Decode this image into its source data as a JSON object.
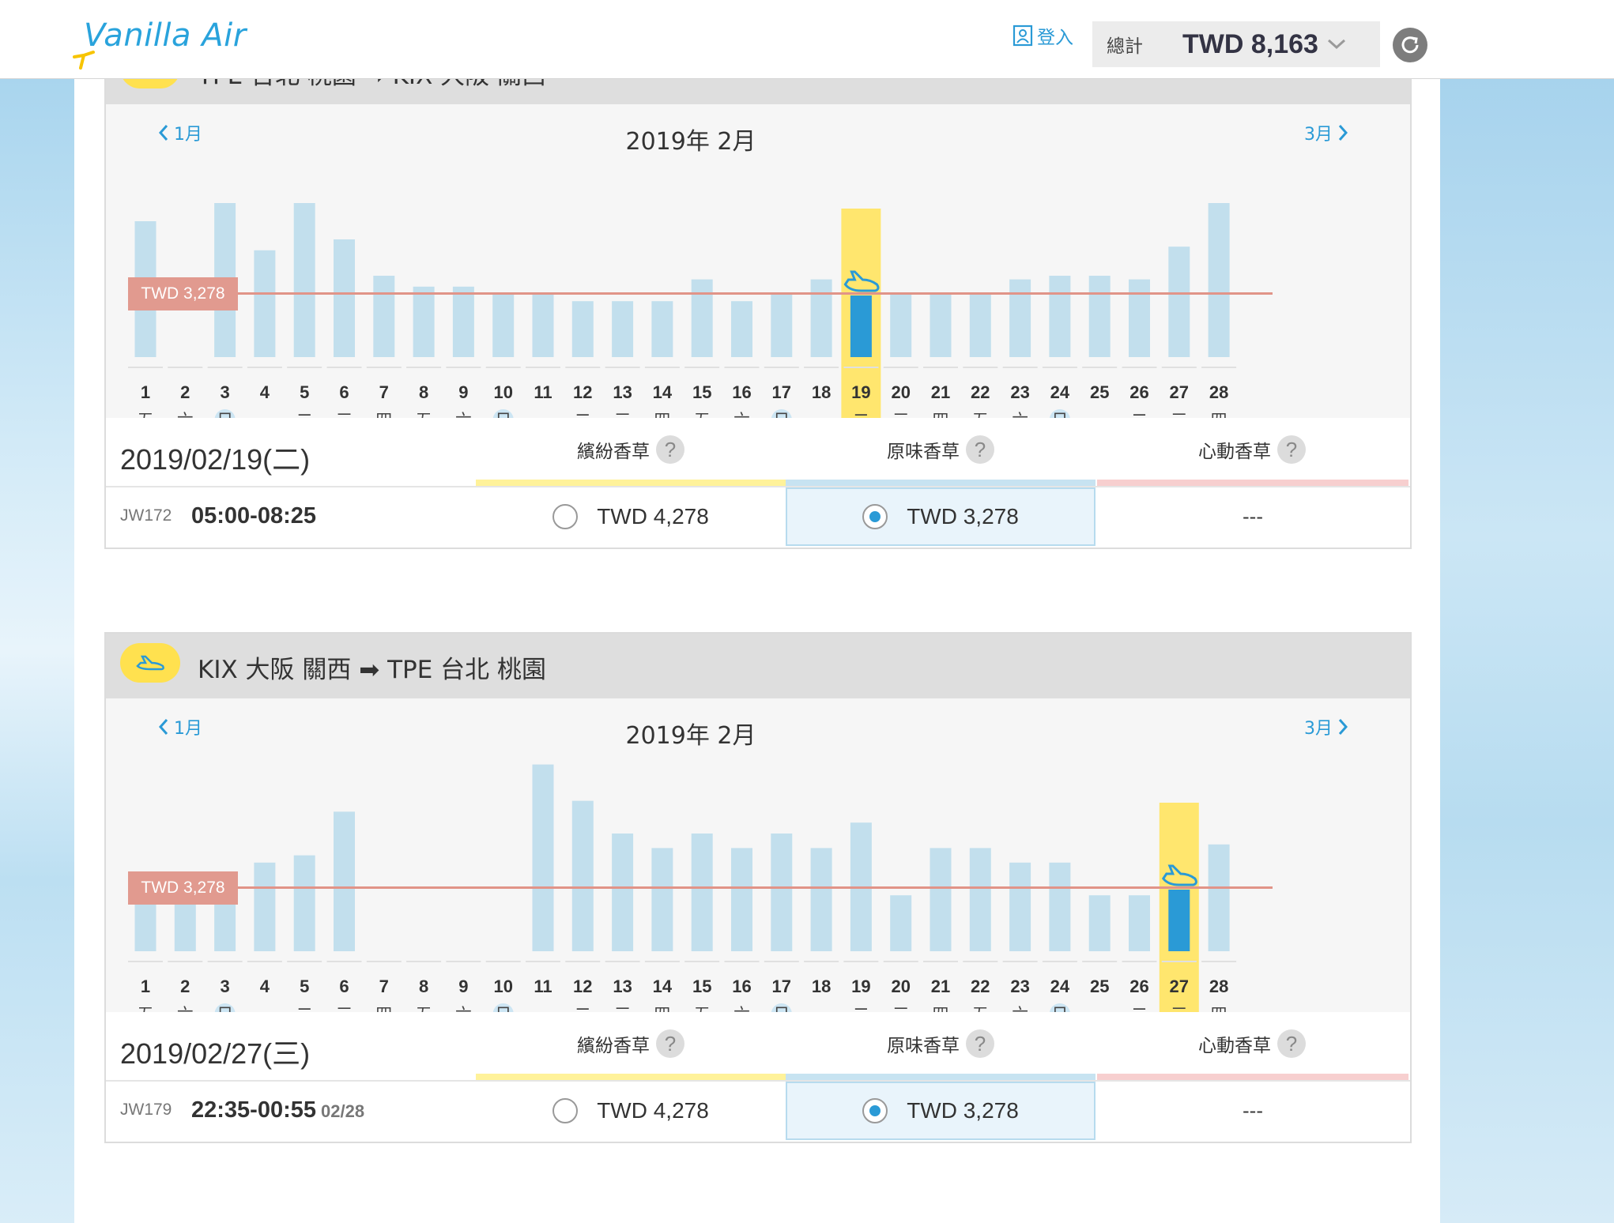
{
  "header": {
    "logo_text": "Vanilla Air",
    "login_label": "登入",
    "total_label": "總計",
    "total_value": "TWD 8,163"
  },
  "colors": {
    "accent": "#2a9ad6",
    "highlight": "#ffe66e",
    "bar": "#c2dfed",
    "selected_bar": "#2a9ad6",
    "price_line": "#e19488"
  },
  "weekdays": [
    "五",
    "六",
    "日",
    "一",
    "二",
    "三",
    "四",
    "五",
    "六",
    "日",
    "一",
    "二",
    "三",
    "四",
    "五",
    "六",
    "日",
    "一",
    "二",
    "三",
    "四",
    "五",
    "六",
    "日",
    "一",
    "二",
    "三",
    "四"
  ],
  "sections": [
    {
      "route_text": "TPE 台北 桃園 ➡ KIX 大阪 關西",
      "month_title": "2019年 2月",
      "prev_label": "1月",
      "next_label": "3月",
      "price_tag": "TWD 3,278",
      "selected_day": 19,
      "date_label": "2019/02/19(二)",
      "fares": [
        {
          "name": "繽紛香草",
          "help": "?"
        },
        {
          "name": "原味香草",
          "help": "?"
        },
        {
          "name": "心動香草",
          "help": "?"
        }
      ],
      "flight": {
        "no": "JW172",
        "time": "05:00-08:25",
        "next_day": "",
        "fare1": "TWD 4,278",
        "fare2": "TWD 3,278",
        "fare3": "---"
      },
      "chart_data": {
        "type": "bar",
        "title": "2019年 2月",
        "categories": [
          1,
          2,
          3,
          4,
          5,
          6,
          7,
          8,
          9,
          10,
          11,
          12,
          13,
          14,
          15,
          16,
          17,
          18,
          19,
          20,
          21,
          22,
          23,
          24,
          25,
          26,
          27,
          28
        ],
        "values": [
          5278,
          0,
          5778,
          4478,
          5778,
          4778,
          3778,
          3478,
          3478,
          3278,
          3278,
          3078,
          3078,
          3078,
          3678,
          3078,
          3278,
          3678,
          3078,
          3278,
          3278,
          3278,
          3678,
          3778,
          3778,
          3678,
          4578,
          5778
        ],
        "reference_line": 3278,
        "reference_label": "TWD 3,278",
        "selected_category": 19
      }
    },
    {
      "route_text": "KIX 大阪 關西 ➡ TPE 台北 桃園",
      "month_title": "2019年 2月",
      "prev_label": "1月",
      "next_label": "3月",
      "price_tag": "TWD 3,278",
      "selected_day": 27,
      "date_label": "2019/02/27(三)",
      "fares": [
        {
          "name": "繽紛香草",
          "help": "?"
        },
        {
          "name": "原味香草",
          "help": "?"
        },
        {
          "name": "心動香草",
          "help": "?"
        }
      ],
      "flight": {
        "no": "JW179",
        "time": "22:35-00:55",
        "next_day": "02/28",
        "fare1": "TWD 4,278",
        "fare2": "TWD 3,278",
        "fare3": "---"
      },
      "chart_data": {
        "type": "bar",
        "title": "2019年 2月",
        "categories": [
          1,
          2,
          3,
          4,
          5,
          6,
          7,
          8,
          9,
          10,
          11,
          12,
          13,
          14,
          15,
          16,
          17,
          18,
          19,
          20,
          21,
          22,
          23,
          24,
          25,
          26,
          27,
          28
        ],
        "values": [
          2978,
          3278,
          3278,
          3978,
          4178,
          5378,
          0,
          0,
          0,
          0,
          6678,
          5678,
          4778,
          4378,
          4778,
          4378,
          4778,
          4378,
          5078,
          3078,
          4378,
          4378,
          3978,
          3978,
          3078,
          3078,
          3178,
          4478
        ],
        "reference_line": 3278,
        "reference_label": "TWD 3,278",
        "selected_category": 27
      }
    }
  ]
}
